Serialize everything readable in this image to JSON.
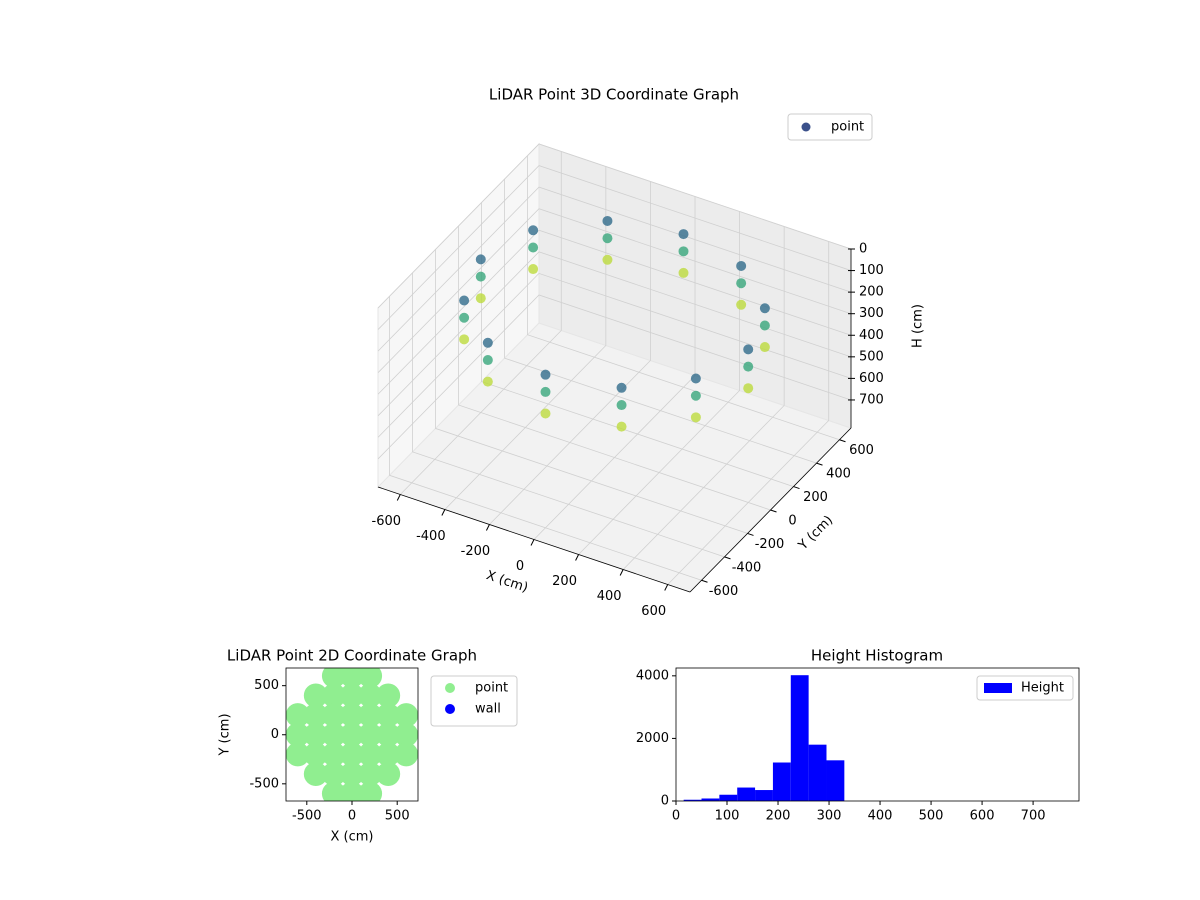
{
  "chart_data": [
    {
      "type": "scatter3d",
      "title": "LiDAR Point 3D Coordinate Graph",
      "xlabel": "X (cm)",
      "ylabel": "Y (cm)",
      "zlabel": "H (cm)",
      "xlim": [
        -700,
        700
      ],
      "ylim": [
        -700,
        700
      ],
      "zlim": [
        0,
        830
      ],
      "z_inverted": true,
      "xticks": [
        -600,
        -400,
        -200,
        0,
        200,
        400,
        600
      ],
      "yticks": [
        -600,
        -400,
        -200,
        0,
        200,
        400,
        600
      ],
      "zticks": [
        0,
        100,
        200,
        300,
        400,
        500,
        600,
        700
      ],
      "colormap": "viridis",
      "grid": true,
      "legend": "upper right",
      "series": [
        {
          "name": "point",
          "color": "#3b518b",
          "x": [
            600,
            520,
            300,
            0,
            -300,
            -520,
            -600,
            -520,
            -300,
            0,
            300,
            520,
            600,
            520,
            300,
            0,
            -300,
            -520,
            -600,
            -520,
            -300,
            0,
            300,
            520,
            600,
            520,
            300,
            0,
            -300,
            -520,
            -600,
            -520,
            -300,
            0,
            300,
            520
          ],
          "y": [
            0,
            300,
            520,
            600,
            520,
            300,
            0,
            -300,
            -520,
            -600,
            -520,
            -300,
            0,
            300,
            520,
            600,
            520,
            300,
            0,
            -300,
            -520,
            -600,
            -520,
            -300,
            0,
            300,
            520,
            600,
            520,
            300,
            0,
            -300,
            -520,
            -600,
            -520,
            -300
          ],
          "z": [
            120,
            120,
            120,
            120,
            120,
            120,
            120,
            120,
            120,
            120,
            120,
            120,
            200,
            200,
            200,
            200,
            200,
            200,
            200,
            200,
            200,
            200,
            200,
            200,
            300,
            300,
            300,
            300,
            300,
            300,
            300,
            300,
            300,
            300,
            300,
            300
          ]
        }
      ]
    },
    {
      "type": "scatter",
      "title": "LiDAR Point 2D Coordinate Graph",
      "xlabel": "X (cm)",
      "ylabel": "Y (cm)",
      "xlim": [
        -730,
        730
      ],
      "ylim": [
        -675,
        680
      ],
      "xticks": [
        -500,
        0,
        500
      ],
      "yticks": [
        -500,
        0,
        500
      ],
      "legend": "outside upper right",
      "series": [
        {
          "name": "point",
          "color": "#90ee90",
          "x": [
            -200,
            0,
            200,
            -400,
            -200,
            0,
            200,
            400,
            -600,
            -400,
            -200,
            0,
            200,
            400,
            600,
            -600,
            -400,
            -200,
            0,
            200,
            400,
            600,
            -600,
            -400,
            -200,
            0,
            200,
            400,
            600,
            -400,
            -200,
            0,
            200,
            400,
            -200,
            0,
            200
          ],
          "y": [
            600,
            600,
            600,
            400,
            400,
            400,
            400,
            400,
            200,
            200,
            200,
            200,
            200,
            200,
            200,
            0,
            0,
            0,
            0,
            0,
            0,
            0,
            -200,
            -200,
            -200,
            -200,
            -200,
            -200,
            -200,
            -400,
            -400,
            -400,
            -400,
            -400,
            -600,
            -600,
            -600
          ]
        },
        {
          "name": "wall",
          "color": "#0000ff",
          "x": [],
          "y": []
        }
      ]
    },
    {
      "type": "histogram",
      "title": "Height Histogram",
      "xlim": [
        0,
        790
      ],
      "ylim": [
        0,
        4250
      ],
      "xticks": [
        0,
        100,
        200,
        300,
        400,
        500,
        600,
        700
      ],
      "yticks": [
        0,
        2000,
        4000
      ],
      "legend": "upper right",
      "bins": [
        15,
        50,
        85,
        120,
        155,
        190,
        225,
        260,
        295,
        330,
        365,
        400,
        435,
        470,
        505,
        540,
        575,
        610,
        645,
        680,
        715,
        750,
        785
      ],
      "series": [
        {
          "name": "Height",
          "color": "#0000ff",
          "values": [
            40,
            80,
            200,
            430,
            350,
            1230,
            4020,
            1800,
            1300,
            0,
            0,
            0,
            0,
            0,
            0,
            0,
            0,
            0,
            0,
            0,
            0,
            0
          ]
        }
      ]
    }
  ]
}
